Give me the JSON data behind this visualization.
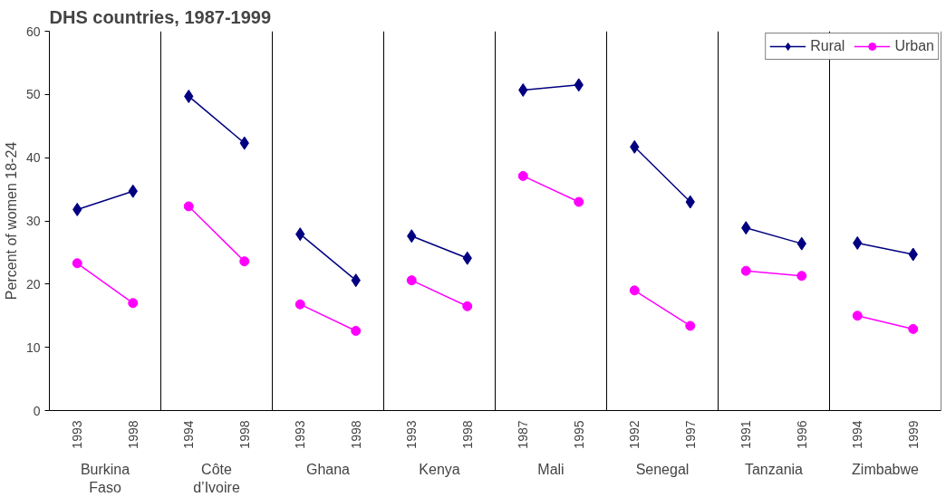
{
  "chart_data": {
    "type": "line",
    "title": "DHS countries, 1987-1999",
    "ylabel": "Percent of women 18-24",
    "categories": [
      "1993",
      "1998",
      "1994",
      "1998",
      "1993",
      "1998",
      "1993",
      "1998",
      "1987",
      "1995",
      "1992",
      "1997",
      "1991",
      "1996",
      "1994",
      "1999"
    ],
    "annotations": [
      "Burkina Faso",
      "Côte d’Ivoire",
      "Ghana",
      "Kenya",
      "Mali",
      "Senegal",
      "Tanzania",
      "Zimbabwe"
    ],
    "series": [
      {
        "name": "Rural",
        "color": "#000080",
        "marker": "diamond",
        "values": [
          31.8,
          34.7,
          49.7,
          42.3,
          27.9,
          20.6,
          27.6,
          24.1,
          50.7,
          51.5,
          41.7,
          33.0,
          28.9,
          26.4,
          26.5,
          24.7
        ]
      },
      {
        "name": "Urban",
        "color": "#ff00ff",
        "marker": "circle",
        "values": [
          23.3,
          17.0,
          32.3,
          23.6,
          16.8,
          12.6,
          20.6,
          16.5,
          37.1,
          33.0,
          19.0,
          13.4,
          22.1,
          21.3,
          15.0,
          12.9
        ]
      }
    ],
    "ylim": [
      0,
      60
    ],
    "yticks": [
      0,
      10,
      20,
      30,
      40,
      50,
      60
    ],
    "legend": "top right"
  }
}
